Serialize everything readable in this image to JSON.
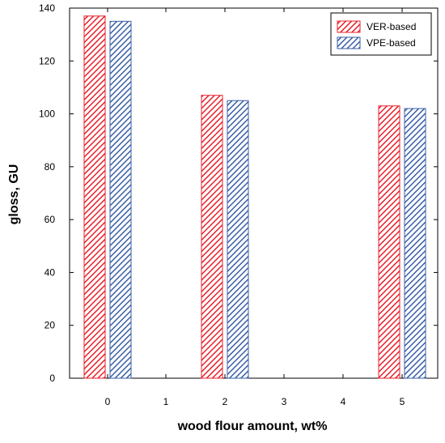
{
  "chart_data": {
    "type": "bar",
    "xlabel": "wood flour amount, wt%",
    "ylabel": "gloss, GU",
    "x_ticks": [
      "0",
      "1",
      "2",
      "3",
      "4",
      "5"
    ],
    "categories": [
      "0",
      "2",
      "5"
    ],
    "ylim": [
      0,
      140
    ],
    "y_ticks": [
      0,
      20,
      40,
      60,
      80,
      100,
      120,
      140
    ],
    "grid": false,
    "legend_position": "top-right",
    "series": [
      {
        "name": "VER-based",
        "color": "#e8212b",
        "pattern": "diagonal-hatch",
        "values": [
          137,
          107,
          103
        ]
      },
      {
        "name": "VPE-based",
        "color": "#3a5fa6",
        "pattern": "diagonal-hatch",
        "values": [
          135,
          105,
          102
        ]
      }
    ]
  }
}
